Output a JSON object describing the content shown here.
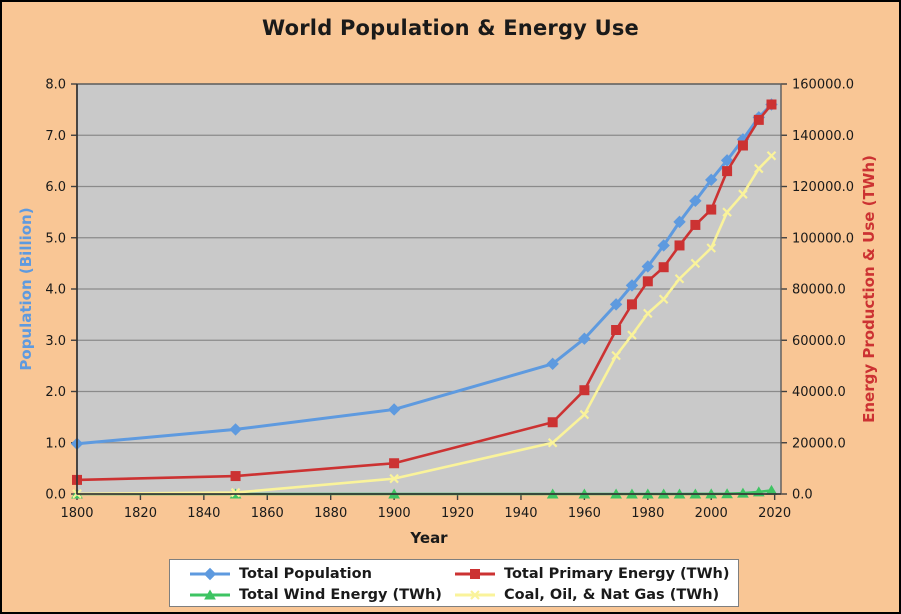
{
  "title": "World Population & Energy Use",
  "colors": {
    "background": "#f9c695",
    "plot_background": "#c9c9c9",
    "grid": "#8a8a8a",
    "legend_background": "#ffffff",
    "text": "#1a1a1a",
    "axis_left_title": "#5e9adf",
    "axis_right_title": "#cc3232"
  },
  "chart_data": {
    "type": "line",
    "title": "World Population & Energy Use",
    "xlabel": "Year",
    "ylabel_left": "Population (Billion)",
    "ylabel_right": "Energy Production & Use (TWh)",
    "xlim": [
      1800,
      2022
    ],
    "ylim_left": [
      0,
      8
    ],
    "ylim_right": [
      0,
      160000
    ],
    "x_ticks": [
      "1800",
      "1820",
      "1840",
      "1860",
      "1880",
      "1900",
      "1920",
      "1940",
      "1960",
      "1980",
      "2000",
      "2020"
    ],
    "y_ticks_left": [
      "0.0",
      "1.0",
      "2.0",
      "3.0",
      "4.0",
      "5.0",
      "6.0",
      "7.0",
      "8.0"
    ],
    "y_ticks_right": [
      "0.0",
      "20000.0",
      "40000.0",
      "60000.0",
      "80000.0",
      "100000.0",
      "120000.0",
      "140000.0",
      "160000.0"
    ],
    "grid": "horizontal",
    "legend_position": "bottom",
    "x": [
      1800,
      1850,
      1900,
      1950,
      1960,
      1970,
      1975,
      1980,
      1985,
      1990,
      1995,
      2000,
      2005,
      2010,
      2015,
      2019
    ],
    "series": [
      {
        "name": "Total Population",
        "axis": "left",
        "color": "#5e9adf",
        "marker": "diamond",
        "values": [
          0.98,
          1.26,
          1.65,
          2.54,
          3.03,
          3.7,
          4.07,
          4.44,
          4.85,
          5.31,
          5.72,
          6.13,
          6.51,
          6.92,
          7.35,
          7.6
        ]
      },
      {
        "name": "Total Primary Energy (TWh)",
        "axis": "right",
        "color": "#cc3232",
        "marker": "square",
        "values": [
          5500,
          7000,
          12000,
          28000,
          40500,
          64000,
          74000,
          83000,
          88500,
          97000,
          105000,
          111000,
          126000,
          136000,
          146000,
          152000
        ]
      },
      {
        "name": "Total Wind Energy (TWh)",
        "axis": "right",
        "color": "#3ec463",
        "marker": "triangle",
        "values": [
          0,
          0,
          0,
          0,
          0,
          0,
          0,
          0,
          0,
          0,
          10,
          30,
          100,
          340,
          830,
          1400
        ]
      },
      {
        "name": "Coal, Oil, & Nat Gas (TWh)",
        "axis": "right",
        "color": "#faf39b",
        "marker": "x",
        "values": [
          100,
          550,
          6000,
          20000,
          31000,
          54000,
          62000,
          70500,
          76000,
          84000,
          90000,
          96000,
          110000,
          117000,
          127000,
          132000
        ]
      }
    ]
  }
}
